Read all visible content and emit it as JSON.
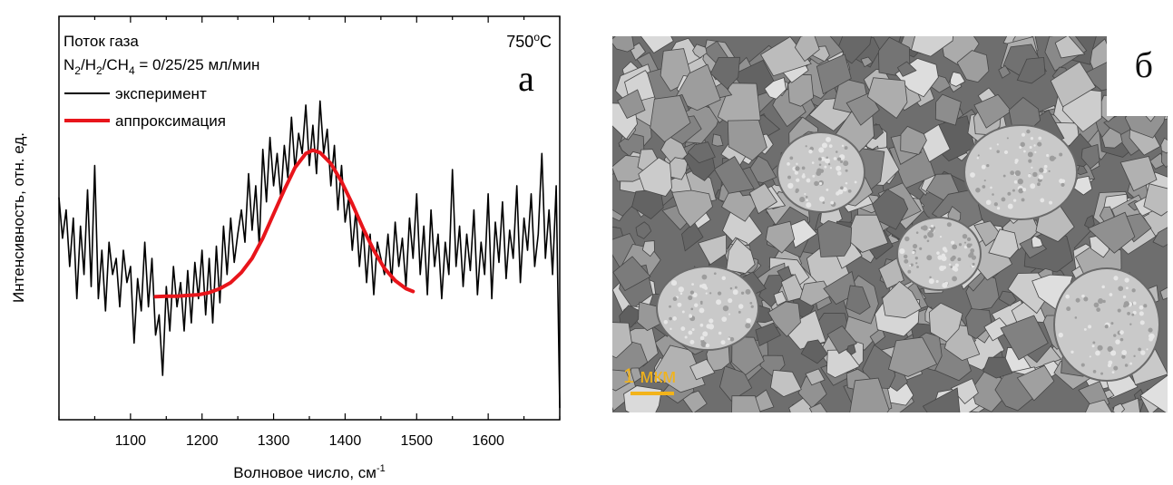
{
  "panel_a": {
    "letter": "а",
    "gas_flow_label": "Поток газа",
    "composition_label": {
      "n": "N",
      "n_sub": "2",
      "h": "/H",
      "h_sub": "2",
      "ch": "/CH",
      "ch_sub": "4",
      "rest": " = 0/25/25 мл/мин"
    },
    "temperature": {
      "value": "750",
      "degree": "o",
      "unit": "C"
    },
    "x_label": {
      "text": "Волновое число, см",
      "sup": "-1"
    },
    "y_label": "Интенсивность, отн. ед."
  },
  "panel_b": {
    "letter": "б",
    "scale_label": "1 мкм",
    "scale_color": "#f2b31a"
  },
  "chart_data": {
    "type": "line",
    "xlabel": "Волновое число, см-1",
    "ylabel": "Интенсивность, отн. ед.",
    "xlim": [
      1000,
      1700
    ],
    "ylim": [
      0,
      1
    ],
    "x_ticks": [
      1100,
      1200,
      1300,
      1400,
      1500,
      1600
    ],
    "y_ticks_labeled": false,
    "legend_position": "top-left",
    "series": [
      {
        "name": "эксперимент",
        "color": "#000000",
        "x": [
          1000,
          1005,
          1010,
          1015,
          1020,
          1025,
          1030,
          1035,
          1040,
          1045,
          1050,
          1055,
          1060,
          1065,
          1070,
          1075,
          1080,
          1085,
          1090,
          1095,
          1100,
          1105,
          1110,
          1115,
          1120,
          1125,
          1130,
          1135,
          1140,
          1145,
          1150,
          1155,
          1160,
          1165,
          1170,
          1175,
          1180,
          1185,
          1190,
          1195,
          1200,
          1205,
          1210,
          1215,
          1220,
          1225,
          1230,
          1235,
          1240,
          1245,
          1250,
          1255,
          1260,
          1265,
          1270,
          1275,
          1280,
          1285,
          1290,
          1295,
          1300,
          1305,
          1310,
          1315,
          1320,
          1325,
          1330,
          1335,
          1340,
          1345,
          1350,
          1355,
          1360,
          1365,
          1370,
          1375,
          1380,
          1385,
          1390,
          1395,
          1400,
          1405,
          1410,
          1415,
          1420,
          1425,
          1430,
          1435,
          1440,
          1445,
          1450,
          1455,
          1460,
          1465,
          1470,
          1475,
          1480,
          1485,
          1490,
          1495,
          1500,
          1505,
          1510,
          1515,
          1520,
          1525,
          1530,
          1535,
          1540,
          1545,
          1550,
          1555,
          1560,
          1565,
          1570,
          1575,
          1580,
          1585,
          1590,
          1595,
          1600,
          1605,
          1610,
          1615,
          1620,
          1625,
          1630,
          1635,
          1640,
          1645,
          1650,
          1655,
          1660,
          1665,
          1670,
          1675,
          1680,
          1685,
          1690,
          1695,
          1700
        ],
        "y": [
          0.55,
          0.45,
          0.52,
          0.38,
          0.5,
          0.3,
          0.48,
          0.36,
          0.57,
          0.33,
          0.63,
          0.3,
          0.42,
          0.27,
          0.44,
          0.36,
          0.4,
          0.28,
          0.42,
          0.34,
          0.38,
          0.19,
          0.35,
          0.27,
          0.44,
          0.28,
          0.4,
          0.21,
          0.26,
          0.11,
          0.33,
          0.22,
          0.38,
          0.28,
          0.34,
          0.22,
          0.37,
          0.24,
          0.39,
          0.3,
          0.42,
          0.26,
          0.4,
          0.24,
          0.43,
          0.29,
          0.48,
          0.36,
          0.5,
          0.39,
          0.46,
          0.52,
          0.44,
          0.61,
          0.47,
          0.58,
          0.43,
          0.67,
          0.54,
          0.7,
          0.58,
          0.66,
          0.55,
          0.68,
          0.6,
          0.75,
          0.62,
          0.71,
          0.66,
          0.78,
          0.63,
          0.73,
          0.61,
          0.79,
          0.66,
          0.72,
          0.58,
          0.68,
          0.52,
          0.63,
          0.49,
          0.55,
          0.42,
          0.52,
          0.38,
          0.48,
          0.34,
          0.46,
          0.31,
          0.44,
          0.4,
          0.36,
          0.46,
          0.34,
          0.49,
          0.38,
          0.45,
          0.33,
          0.5,
          0.4,
          0.56,
          0.36,
          0.48,
          0.31,
          0.52,
          0.38,
          0.46,
          0.3,
          0.44,
          0.36,
          0.62,
          0.38,
          0.48,
          0.33,
          0.46,
          0.37,
          0.52,
          0.31,
          0.44,
          0.36,
          0.56,
          0.3,
          0.49,
          0.39,
          0.54,
          0.35,
          0.47,
          0.4,
          0.58,
          0.34,
          0.5,
          0.42,
          0.56,
          0.38,
          0.46,
          0.66,
          0.4,
          0.52,
          0.36,
          0.58,
          0.03
        ]
      },
      {
        "name": "аппроксимация",
        "color": "#e8151b",
        "x": [
          1135,
          1150,
          1165,
          1180,
          1195,
          1210,
          1225,
          1240,
          1255,
          1270,
          1285,
          1300,
          1315,
          1330,
          1345,
          1355,
          1365,
          1380,
          1395,
          1410,
          1425,
          1440,
          1455,
          1470,
          1485,
          1495
        ],
        "y": [
          0.305,
          0.306,
          0.306,
          0.308,
          0.31,
          0.315,
          0.325,
          0.34,
          0.365,
          0.4,
          0.45,
          0.51,
          0.57,
          0.625,
          0.66,
          0.668,
          0.662,
          0.635,
          0.59,
          0.535,
          0.475,
          0.42,
          0.375,
          0.345,
          0.325,
          0.318
        ]
      }
    ]
  }
}
